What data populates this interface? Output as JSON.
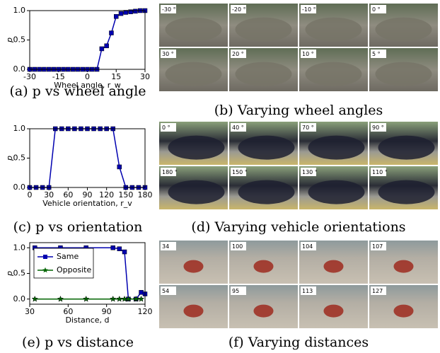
{
  "chart_data": [
    {
      "type": "line",
      "caption": "(a) p vs wheel angle",
      "xlabel": "Wheel angle, r_w",
      "ylabel": "p",
      "x": [
        -30,
        -27.5,
        -25,
        -22.5,
        -20,
        -17.5,
        -15,
        -12.5,
        -10,
        -7.5,
        -5,
        -2.5,
        0,
        2.5,
        5,
        7.5,
        10,
        12.5,
        15,
        17.5,
        20,
        22.5,
        25,
        27.5,
        30
      ],
      "values": [
        0,
        0,
        0,
        0,
        0,
        0,
        0,
        0,
        0,
        0,
        0,
        0,
        0,
        0,
        0,
        0.35,
        0.4,
        0.62,
        0.9,
        0.95,
        0.97,
        0.98,
        0.99,
        1.0,
        1.0
      ],
      "color": "#0000b0",
      "marker": "square",
      "xlim": [
        -30,
        30
      ],
      "xticks": [
        -30,
        -15,
        0,
        15,
        30
      ],
      "ylim": [
        0,
        1
      ],
      "yticks": [
        {
          "value": 0,
          "label": "0.0"
        },
        {
          "value": 0.5,
          "label": "0.5"
        },
        {
          "value": 1,
          "label": "1.0"
        }
      ]
    },
    {
      "type": "line",
      "caption": "(c) p vs orientation",
      "xlabel": "Vehicle orientation, r_v",
      "ylabel": "p",
      "x": [
        0,
        10,
        20,
        30,
        40,
        50,
        60,
        70,
        80,
        90,
        100,
        110,
        120,
        130,
        140,
        150,
        160,
        170,
        180
      ],
      "values": [
        0,
        0,
        0,
        0,
        1,
        1,
        1,
        1,
        1,
        1,
        1,
        1,
        1,
        1,
        0.35,
        0,
        0,
        0,
        0
      ],
      "color": "#0000b0",
      "marker": "square",
      "xlim": [
        0,
        180
      ],
      "xticks": [
        0,
        30,
        60,
        90,
        120,
        150,
        180
      ],
      "ylim": [
        0,
        1
      ],
      "yticks": [
        {
          "value": 0,
          "label": "0.0"
        },
        {
          "value": 0.5,
          "label": "0.5"
        },
        {
          "value": 1,
          "label": "1.0"
        }
      ]
    },
    {
      "type": "line",
      "caption": "(e) p vs distance",
      "xlabel": "Distance, d",
      "ylabel": "p",
      "legend": "upper left",
      "series": [
        {
          "name": "Same",
          "color": "#0000b0",
          "marker": "square",
          "x": [
            34,
            54,
            74,
            95,
            100,
            104,
            107,
            113,
            117,
            120
          ],
          "values": [
            1,
            1,
            1,
            1,
            0.98,
            0.92,
            0,
            0,
            0.13,
            0.1
          ]
        },
        {
          "name": "Opposite",
          "color": "#006400",
          "marker": "star",
          "x": [
            34,
            54,
            74,
            95,
            100,
            104,
            107,
            113,
            117
          ],
          "values": [
            0,
            0,
            0,
            0,
            0,
            0,
            0,
            0,
            0
          ]
        }
      ],
      "xlim": [
        30,
        120
      ],
      "xticks": [
        30,
        60,
        90,
        120
      ],
      "ylim": [
        -0.1,
        1.1
      ],
      "yticks": [
        {
          "value": 0,
          "label": "0.0"
        },
        {
          "value": 0.5,
          "label": "0.5"
        },
        {
          "value": 1,
          "label": "1.0"
        }
      ]
    }
  ],
  "image_panels": [
    {
      "caption": "(b) Varying wheel angles",
      "labels": [
        "-30 °",
        "-20 °",
        "-10 °",
        "0 °",
        "30 °",
        "20 °",
        "10 °",
        "5 °"
      ]
    },
    {
      "caption": "(d) Varying vehicle orientations",
      "labels": [
        "0 °",
        "40 °",
        "70 °",
        "90 °",
        "180 °",
        "150 °",
        "130 °",
        "110 °"
      ]
    },
    {
      "caption": "(f) Varying distances",
      "labels": [
        "34",
        "100",
        "104",
        "107",
        "54",
        "95",
        "113",
        "127"
      ]
    }
  ]
}
